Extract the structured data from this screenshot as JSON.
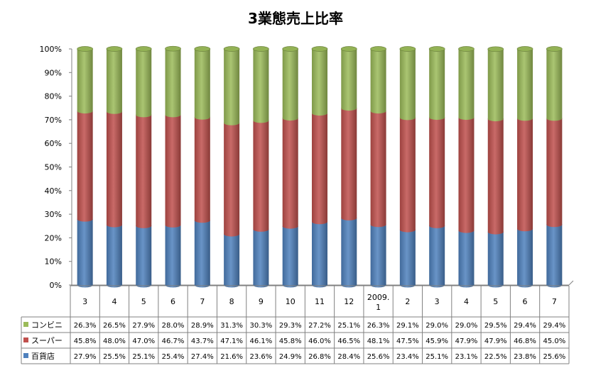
{
  "chart_data": {
    "type": "bar",
    "stacked": true,
    "percent_stacked": true,
    "title": "3業態売上比率",
    "xlabel": "",
    "ylabel": "",
    "ylim": [
      0,
      100
    ],
    "y_ticks": [
      "0%",
      "10%",
      "20%",
      "30%",
      "40%",
      "50%",
      "60%",
      "70%",
      "80%",
      "90%",
      "100%"
    ],
    "grid": false,
    "legend_position": "bottom-left (data table)",
    "categories": [
      "3",
      "4",
      "5",
      "6",
      "7",
      "8",
      "9",
      "10",
      "11",
      "12",
      "2009.\n1",
      "2",
      "3",
      "4",
      "5",
      "6",
      "7"
    ],
    "category_lines": [
      [
        "3"
      ],
      [
        "4"
      ],
      [
        "5"
      ],
      [
        "6"
      ],
      [
        "7"
      ],
      [
        "8"
      ],
      [
        "9"
      ],
      [
        "10"
      ],
      [
        "11"
      ],
      [
        "12"
      ],
      [
        "2009.",
        "1"
      ],
      [
        "2"
      ],
      [
        "3"
      ],
      [
        "4"
      ],
      [
        "5"
      ],
      [
        "6"
      ],
      [
        "7"
      ]
    ],
    "series": [
      {
        "name": "コンビニ",
        "color": "#9bbb59",
        "values": [
          26.3,
          26.5,
          27.9,
          28.0,
          28.9,
          31.3,
          30.3,
          29.3,
          27.2,
          25.1,
          26.3,
          29.1,
          29.0,
          29.0,
          29.5,
          29.4,
          29.4
        ],
        "labels": [
          "26.3%",
          "26.5%",
          "27.9%",
          "28.0%",
          "28.9%",
          "31.3%",
          "30.3%",
          "29.3%",
          "27.2%",
          "25.1%",
          "26.3%",
          "29.1%",
          "29.0%",
          "29.0%",
          "29.5%",
          "29.4%",
          "29.4%"
        ]
      },
      {
        "name": "スーパー",
        "color": "#c0504d",
        "values": [
          45.8,
          48.0,
          47.0,
          46.7,
          43.7,
          47.1,
          46.1,
          45.8,
          46.0,
          46.5,
          48.1,
          47.5,
          45.9,
          47.9,
          47.9,
          46.8,
          45.0
        ],
        "labels": [
          "45.8%",
          "48.0%",
          "47.0%",
          "46.7%",
          "43.7%",
          "47.1%",
          "46.1%",
          "45.8%",
          "46.0%",
          "46.5%",
          "48.1%",
          "47.5%",
          "45.9%",
          "47.9%",
          "47.9%",
          "46.8%",
          "45.0%"
        ]
      },
      {
        "name": "百貨店",
        "color": "#4f81bd",
        "values": [
          27.9,
          25.5,
          25.1,
          25.4,
          27.4,
          21.6,
          23.6,
          24.9,
          26.8,
          28.4,
          25.6,
          23.4,
          25.1,
          23.1,
          22.5,
          23.8,
          25.6
        ],
        "labels": [
          "27.9%",
          "25.5%",
          "25.1%",
          "25.4%",
          "27.4%",
          "21.6%",
          "23.6%",
          "24.9%",
          "26.8%",
          "28.4%",
          "25.6%",
          "23.4%",
          "25.1%",
          "23.1%",
          "22.5%",
          "23.8%",
          "25.6%"
        ]
      }
    ]
  }
}
